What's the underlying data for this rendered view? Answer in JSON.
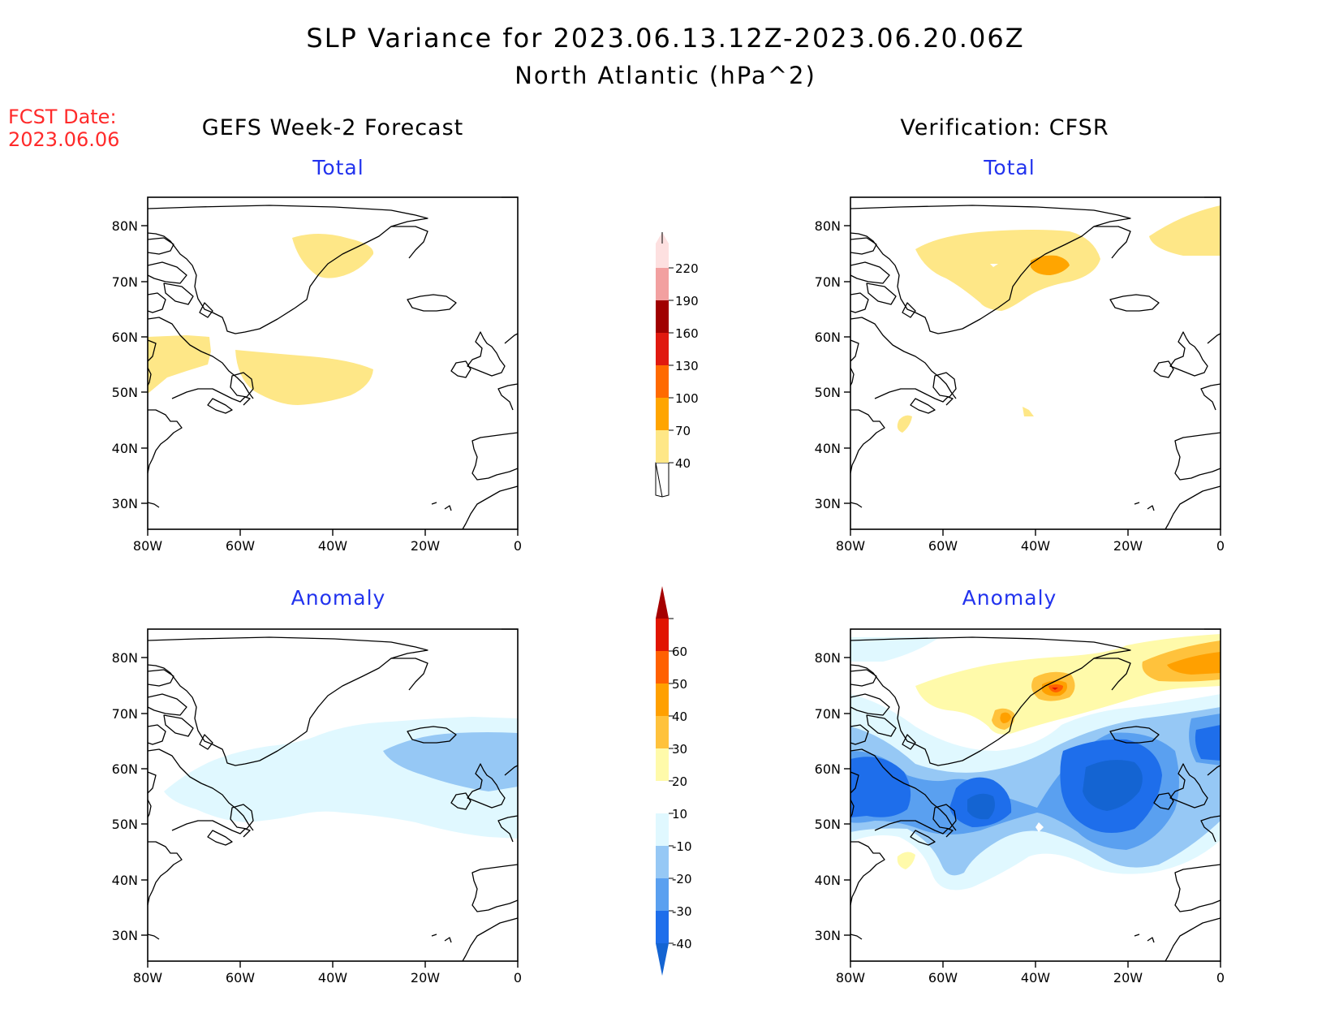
{
  "header": {
    "title": "SLP Variance for 2023.06.13.12Z-2023.06.20.06Z",
    "subtitle": "North Atlantic (hPa^2)"
  },
  "forecast_date": {
    "label": "FCST Date:",
    "value": "2023.06.06"
  },
  "columns": {
    "left": "GEFS Week-2 Forecast",
    "right": "Verification: CFSR"
  },
  "panels": {
    "top_left": "Total",
    "top_right": "Total",
    "bottom_left": "Anomaly",
    "bottom_right": "Anomaly"
  },
  "axes": {
    "lat_ticks": [
      "80N",
      "70N",
      "60N",
      "50N",
      "40N",
      "30N"
    ],
    "lon_ticks": [
      "80W",
      "60W",
      "40W",
      "20W",
      "0"
    ]
  },
  "colorbars": {
    "total": {
      "levels": [
        "40",
        "70",
        "100",
        "130",
        "160",
        "190",
        "220"
      ],
      "colors": [
        "#fee787",
        "#ffa500",
        "#ff6a00",
        "#e0190f",
        "#a00000",
        "#f2a0a0",
        "#fde0e0"
      ]
    },
    "anomaly": {
      "levels": [
        "-40",
        "-30",
        "-20",
        "-10",
        "10",
        "20",
        "30",
        "40",
        "50",
        "60"
      ],
      "colors": [
        "#1464d2",
        "#1e6eeb",
        "#5aa0f0",
        "#96c8f5",
        "#e0f8ff",
        "#ffffff",
        "#fffaaa",
        "#ffc23c",
        "#ffa000",
        "#ff6000",
        "#e11400",
        "#a50000"
      ]
    }
  },
  "palette": {
    "yellow": "#fee787",
    "orange": "#ffa500",
    "red_orange": "#ff6a00",
    "pale_blue": "#e0f8ff",
    "light_blue": "#96c8f5",
    "mid_blue": "#5aa0f0",
    "blue": "#1e6eeb",
    "deep_blue": "#1464d2",
    "pale_yellow": "#fffaaa",
    "light_orange": "#ffc23c"
  }
}
